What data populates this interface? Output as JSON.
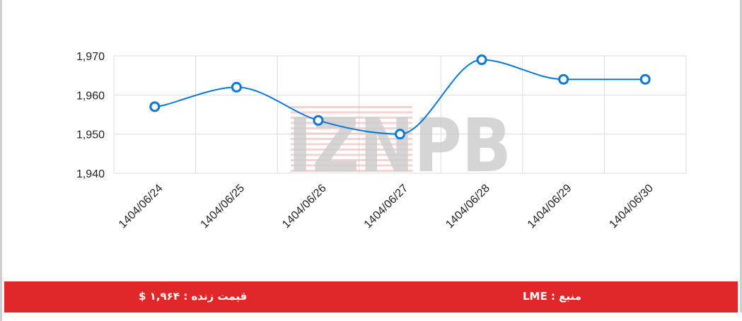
{
  "chart_data": {
    "type": "line",
    "categories": [
      "1404/06/24",
      "1404/06/25",
      "1404/06/26",
      "1404/06/27",
      "1404/06/28",
      "1404/06/29",
      "1404/06/30"
    ],
    "values": [
      1957,
      1962,
      1953.5,
      1950,
      1969,
      1964,
      1964
    ],
    "ylim": [
      1940,
      1970
    ],
    "yticks": [
      1940,
      1950,
      1960,
      1970
    ],
    "ytick_labels": [
      "1,940",
      "1,950",
      "1,960",
      "1,970"
    ],
    "grid": true,
    "line_color": "#0a78d6",
    "title": "",
    "xlabel": "",
    "ylabel": ""
  },
  "watermark": {
    "text": "IZNPB",
    "colors": [
      "#c8c8c8",
      "#e8a6a6"
    ]
  },
  "footer": {
    "live_price": "قیمت زنده : ۱,۹۶۴ $",
    "source": "منبع : LME",
    "background": "#e0272a"
  }
}
